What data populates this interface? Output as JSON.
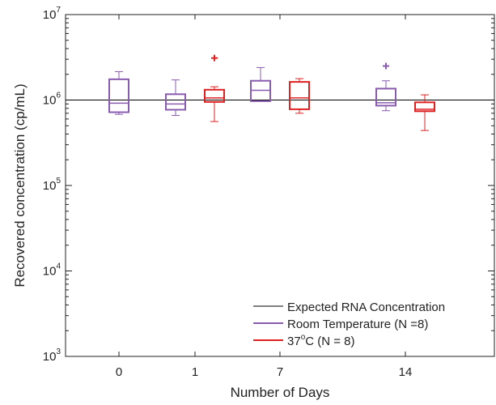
{
  "chart_data": {
    "type": "box",
    "x_label": "Number of Days",
    "y_label": "Recovered concentration (cp/mL)",
    "y_scale": "log",
    "y_range": [
      1000,
      10000000
    ],
    "y_ticks": [
      {
        "value": 1000,
        "base": "10",
        "exp": "3"
      },
      {
        "value": 10000,
        "base": "10",
        "exp": "4"
      },
      {
        "value": 100000,
        "base": "10",
        "exp": "5"
      },
      {
        "value": 1000000,
        "base": "10",
        "exp": "6"
      },
      {
        "value": 10000000,
        "base": "10",
        "exp": "7"
      }
    ],
    "categories": [
      "0",
      "1",
      "7",
      "14"
    ],
    "reference_line": {
      "value": 1000000,
      "label": "Expected RNA Concentration",
      "color": "#000000"
    },
    "series": [
      {
        "name": "Room Temperature (N =8)",
        "color": "#8a5cb0",
        "boxes": [
          {
            "category": "0",
            "whisker_low": 680000,
            "q1": 720000,
            "median": 920000,
            "q3": 1750000,
            "whisker_high": 2150000,
            "outliers": []
          },
          {
            "category": "1",
            "whisker_low": 660000,
            "q1": 770000,
            "median": 900000,
            "q3": 1170000,
            "whisker_high": 1720000,
            "outliers": []
          },
          {
            "category": "7",
            "whisker_low": 970000,
            "q1": 970000,
            "median": 1300000,
            "q3": 1680000,
            "whisker_high": 2400000,
            "outliers": []
          },
          {
            "category": "14",
            "whisker_low": 750000,
            "q1": 860000,
            "median": 930000,
            "q3": 1360000,
            "whisker_high": 1680000,
            "outliers": [
              2500000
            ]
          }
        ]
      },
      {
        "name": "37",
        "name_sup": "o",
        "name_rest": "C (N = 8)",
        "color": "#e02020",
        "boxes": [
          {
            "category": "1",
            "whisker_low": 560000,
            "q1": 950000,
            "median": 1060000,
            "q3": 1320000,
            "whisker_high": 1430000,
            "outliers": [
              3100000
            ]
          },
          {
            "category": "7",
            "whisker_low": 700000,
            "q1": 780000,
            "median": 1060000,
            "q3": 1630000,
            "whisker_high": 1780000,
            "outliers": []
          },
          {
            "category": "14",
            "whisker_low": 440000,
            "q1": 740000,
            "median": 780000,
            "q3": 940000,
            "whisker_high": 1150000,
            "outliers": []
          }
        ]
      }
    ],
    "legend": {
      "position": "bottom-right",
      "boxed": false
    }
  }
}
